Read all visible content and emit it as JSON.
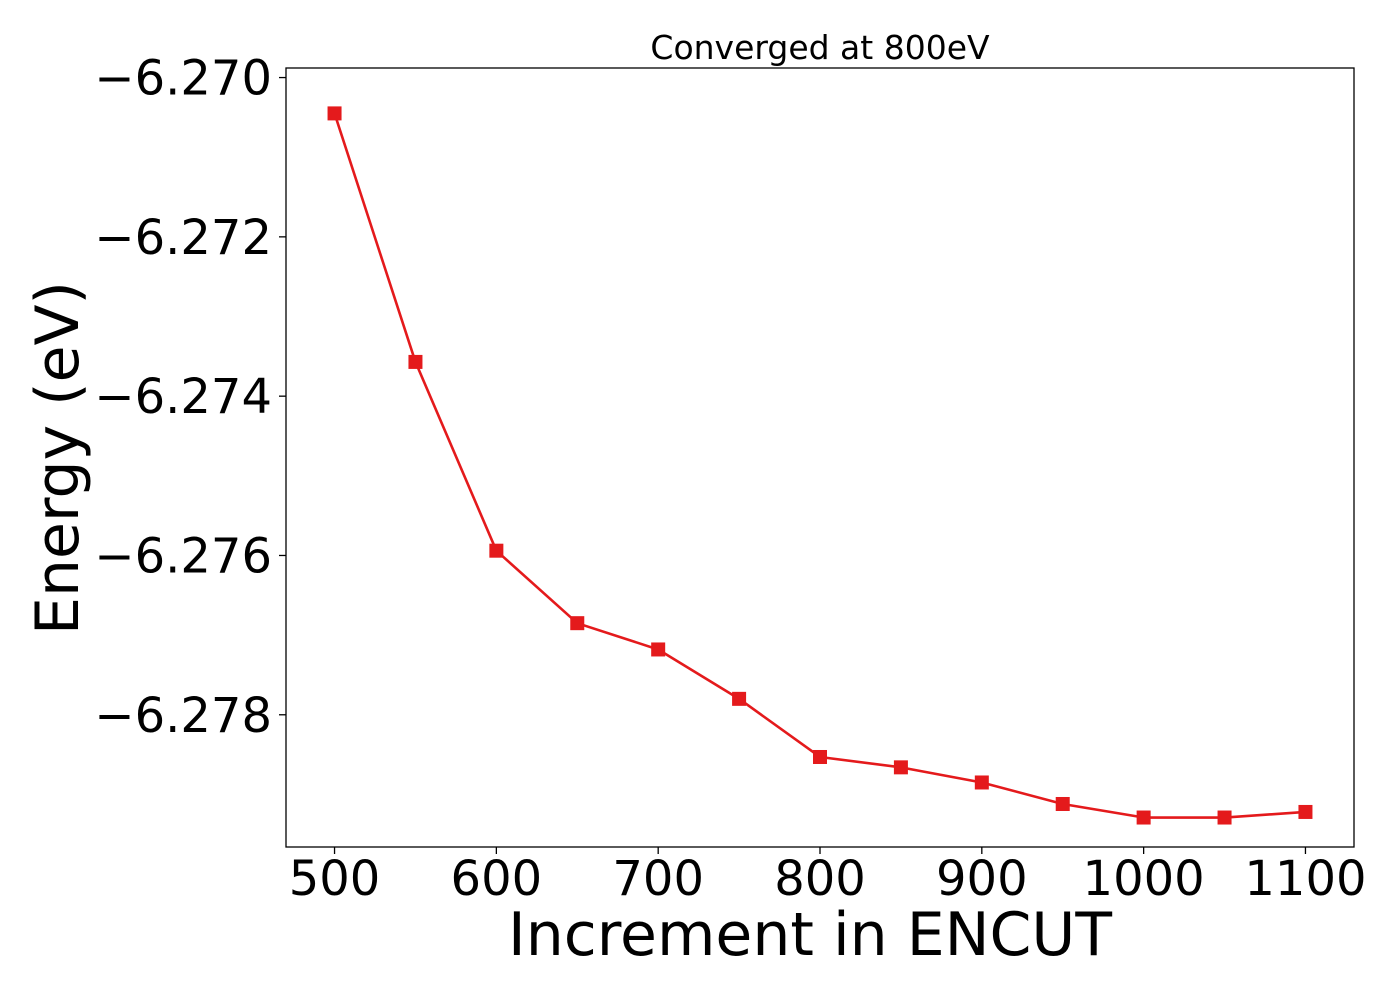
{
  "chart_data": {
    "type": "line",
    "title": "Converged at 800eV",
    "xlabel": "Increment in ENCUT",
    "ylabel": "Energy (eV)",
    "x": [
      500,
      550,
      600,
      650,
      700,
      750,
      800,
      850,
      900,
      950,
      1000,
      1050,
      1100
    ],
    "xticks": [
      500,
      600,
      700,
      800,
      900,
      1000,
      1100
    ],
    "xtick_labels": [
      "500",
      "600",
      "700",
      "800",
      "900",
      "1000",
      "1100"
    ],
    "yticks": [
      -6.27,
      -6.272,
      -6.274,
      -6.276,
      -6.278
    ],
    "ytick_labels": [
      "−6.270",
      "−6.272",
      "−6.274",
      "−6.276",
      "−6.278"
    ],
    "xlim": [
      470,
      1130
    ],
    "ylim": [
      -6.27966,
      -6.26988
    ],
    "series": [
      {
        "color": "#e41a1c",
        "marker": "square",
        "values": [
          -6.27045,
          -6.27357,
          -6.27594,
          -6.27685,
          -6.27718,
          -6.2778,
          -6.27853,
          -6.27866,
          -6.27885,
          -6.27912,
          -6.27929,
          -6.27929,
          -6.27922
        ]
      }
    ],
    "grid": false,
    "legend": "none"
  }
}
